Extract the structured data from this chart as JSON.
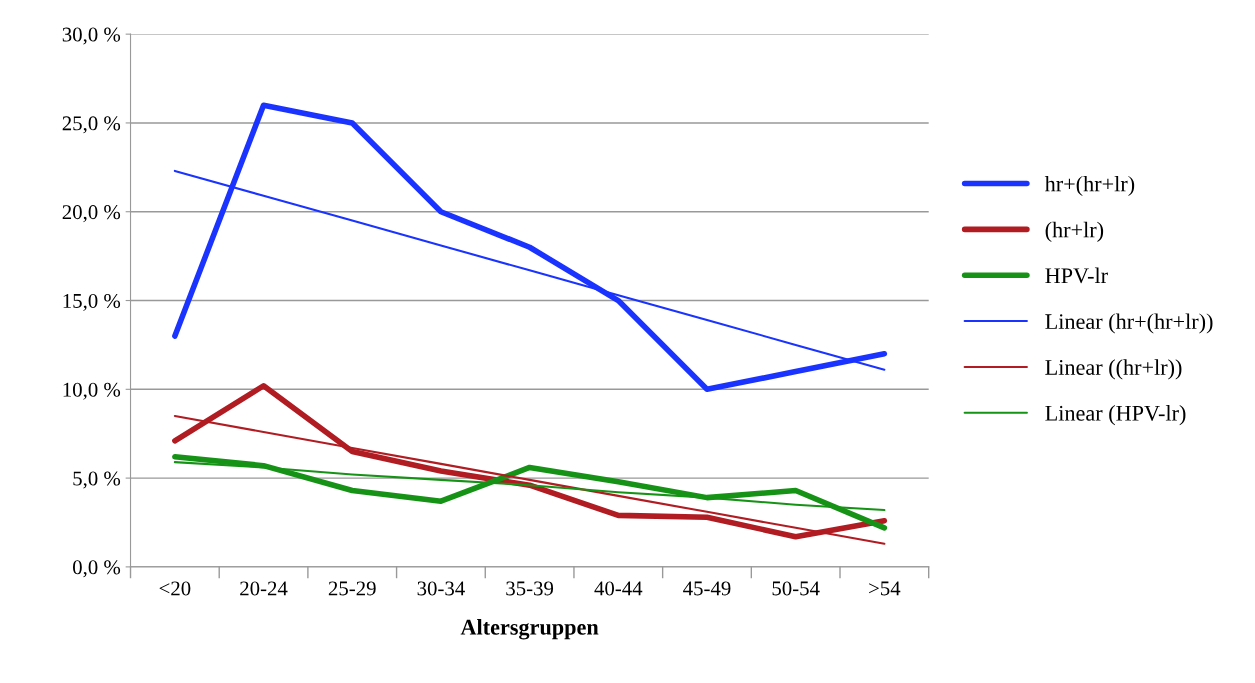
{
  "chart_data": {
    "type": "line",
    "xlabel": "Altersgruppen",
    "categories": [
      "<20",
      "20-24",
      "25-29",
      "30-34",
      "35-39",
      "40-44",
      "45-49",
      "50-54",
      ">54"
    ],
    "ylim": [
      0,
      30
    ],
    "yticks": [
      {
        "value": 0,
        "label": "0,0 %"
      },
      {
        "value": 5,
        "label": "5,0 %"
      },
      {
        "value": 10,
        "label": "10,0 %"
      },
      {
        "value": 15,
        "label": "15,0 %"
      },
      {
        "value": 20,
        "label": "20,0 %"
      },
      {
        "value": 25,
        "label": "25,0 %"
      },
      {
        "value": 30,
        "label": "30,0 %"
      }
    ],
    "grid": "y",
    "legend": "right",
    "marker": "none",
    "line_style": "solid",
    "series": [
      {
        "name": "hr+(hr+lr)",
        "color": "#1a33ff",
        "values": [
          13,
          26,
          25,
          20,
          18,
          15,
          10,
          11,
          12
        ]
      },
      {
        "name": "(hr+lr)",
        "color": "#b01c22",
        "values": [
          7.1,
          10.2,
          6.5,
          5.4,
          4.6,
          2.9,
          2.8,
          1.7,
          2.6
        ]
      },
      {
        "name": "HPV-lr",
        "color": "#169316",
        "values": [
          6.2,
          5.7,
          4.3,
          3.7,
          5.6,
          4.8,
          3.9,
          4.3,
          2.2
        ]
      },
      {
        "name": "Linear (hr+(hr+lr))",
        "color": "#1a33ff",
        "values": [
          22.3,
          20.9,
          19.5,
          18.1,
          16.7,
          15.3,
          13.9,
          12.5,
          11.1
        ]
      },
      {
        "name": "Linear ((hr+lr))",
        "color": "#b01c22",
        "values": [
          8.5,
          7.6,
          6.7,
          5.8,
          4.9,
          4.0,
          3.1,
          2.2,
          1.3
        ]
      },
      {
        "name": "Linear (HPV-lr)",
        "color": "#169316",
        "values": [
          5.9,
          5.6,
          5.2,
          4.9,
          4.6,
          4.2,
          3.9,
          3.5,
          3.2
        ]
      }
    ]
  }
}
